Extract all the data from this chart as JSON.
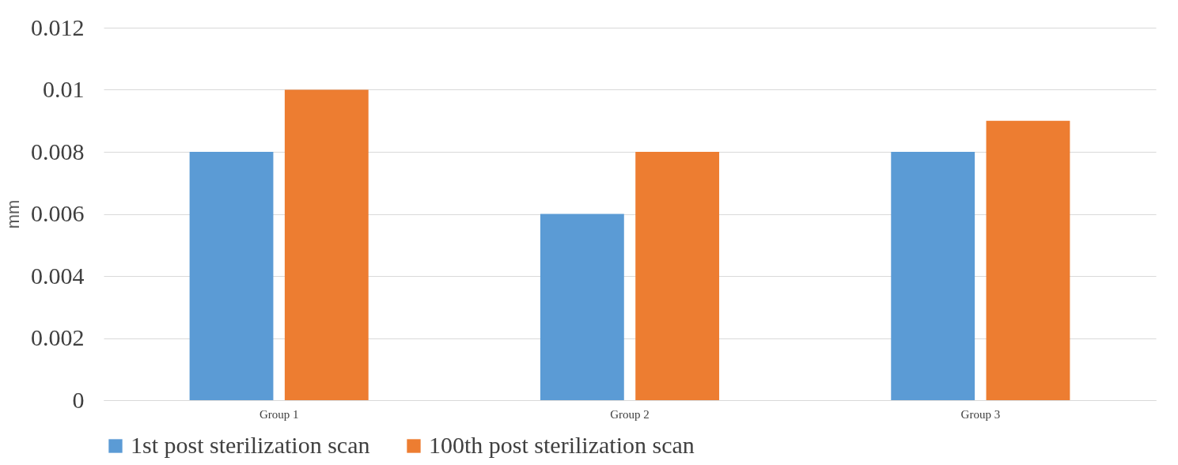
{
  "chart_data": {
    "type": "bar",
    "ylabel": "mm",
    "categories": [
      "Group 1",
      "Group 2",
      "Group 3"
    ],
    "series": [
      {
        "name": "1st post sterilization scan",
        "color": "#5b9bd5",
        "values": [
          0.008,
          0.006,
          0.008
        ]
      },
      {
        "name": "100th post sterilization scan",
        "color": "#ed7d31",
        "values": [
          0.01,
          0.008,
          0.009
        ]
      }
    ],
    "ylim": [
      0,
      0.012
    ],
    "yticks": [
      0,
      0.002,
      0.004,
      0.006,
      0.008,
      0.01,
      0.012
    ],
    "grid": "y",
    "legend": "bottom"
  }
}
